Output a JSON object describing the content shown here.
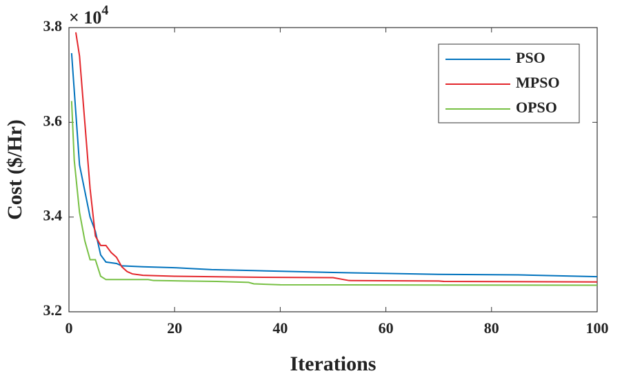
{
  "chart_data": {
    "type": "line",
    "xlabel": "Iterations",
    "ylabel": "Cost ($/Hr)",
    "y_multiplier": {
      "base": "× 10",
      "exponent": "4"
    },
    "xlim": [
      0,
      100
    ],
    "xticks": [
      0,
      20,
      40,
      60,
      80,
      100
    ],
    "ylim": [
      3.2,
      3.8
    ],
    "yticks": [
      3.2,
      3.4,
      3.6,
      3.8
    ],
    "grid": false,
    "legend": "top-right",
    "series": [
      {
        "name": "PSO",
        "color": "#0072bd",
        "x": [
          0.5,
          2,
          4,
          5,
          6,
          7,
          9,
          10,
          14,
          20,
          27,
          35,
          50,
          60,
          70,
          85,
          100
        ],
        "values": [
          3.746,
          3.51,
          3.4,
          3.37,
          3.32,
          3.305,
          3.302,
          3.297,
          3.295,
          3.293,
          3.289,
          3.287,
          3.283,
          3.281,
          3.279,
          3.278,
          3.274
        ]
      },
      {
        "name": "MPSO",
        "color": "#e3262b",
        "x": [
          1.3,
          2,
          3,
          4,
          5,
          6,
          7,
          8,
          9,
          10,
          11,
          12,
          14,
          20,
          35,
          50,
          53,
          70,
          71,
          100
        ],
        "values": [
          3.79,
          3.74,
          3.6,
          3.46,
          3.36,
          3.34,
          3.34,
          3.325,
          3.315,
          3.295,
          3.285,
          3.28,
          3.277,
          3.275,
          3.273,
          3.272,
          3.266,
          3.265,
          3.264,
          3.263
        ]
      },
      {
        "name": "OPSO",
        "color": "#77c043",
        "x": [
          0.5,
          1,
          2,
          3,
          4,
          5,
          6,
          7,
          15,
          16,
          22,
          28,
          34,
          35,
          40,
          100
        ],
        "values": [
          3.645,
          3.52,
          3.41,
          3.35,
          3.31,
          3.31,
          3.275,
          3.268,
          3.268,
          3.266,
          3.265,
          3.264,
          3.262,
          3.259,
          3.257,
          3.256
        ]
      }
    ]
  }
}
